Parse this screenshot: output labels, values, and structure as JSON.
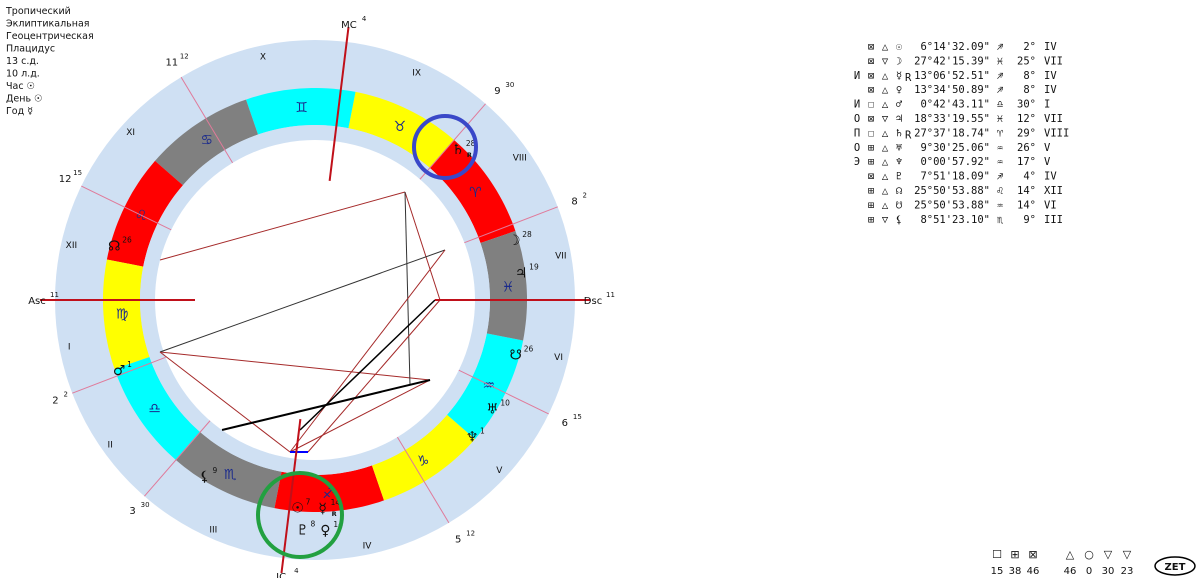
{
  "settings": [
    "Тропический",
    "Эклиптикальная",
    "Геоцентрическая",
    "Плацидус",
    "13 с.д.",
    "10 л.д.",
    "Час ☉",
    "День ☉",
    "Год ☿"
  ],
  "wheel": {
    "signs": [
      {
        "glyph": "♈",
        "color": "#ff0000"
      },
      {
        "glyph": "♉",
        "color": "#ffff00"
      },
      {
        "glyph": "♊",
        "color": "#00ffff"
      },
      {
        "glyph": "♋",
        "color": "#808080"
      },
      {
        "glyph": "♌",
        "color": "#ff0000"
      },
      {
        "glyph": "♍",
        "color": "#ffff00"
      },
      {
        "glyph": "♎",
        "color": "#00ffff"
      },
      {
        "glyph": "♏",
        "color": "#808080"
      },
      {
        "glyph": "♐",
        "color": "#ff0000"
      },
      {
        "glyph": "♑",
        "color": "#ffff00"
      },
      {
        "glyph": "♒",
        "color": "#00ffff"
      },
      {
        "glyph": "♓",
        "color": "#808080"
      }
    ],
    "cusps": [
      {
        "label": "Asc",
        "degree": 11,
        "longitude": 161
      },
      {
        "label": "2",
        "degree": 2,
        "longitude": 182
      },
      {
        "label": "3",
        "degree": 30,
        "longitude": 210
      },
      {
        "label": "IC",
        "degree": 4,
        "longitude": 244
      },
      {
        "label": "5",
        "degree": 12,
        "longitude": 282
      },
      {
        "label": "6",
        "degree": 15,
        "longitude": 315
      },
      {
        "label": "Dsc",
        "degree": 11,
        "longitude": 341
      },
      {
        "label": "8",
        "degree": 2,
        "longitude": 2
      },
      {
        "label": "9",
        "degree": 30,
        "longitude": 30
      },
      {
        "label": "MC",
        "degree": 4,
        "longitude": 64
      },
      {
        "label": "11",
        "degree": 12,
        "longitude": 102
      },
      {
        "label": "12",
        "degree": 15,
        "longitude": 135
      }
    ],
    "houses": [
      "I",
      "II",
      "III",
      "IV",
      "V",
      "VI",
      "VII",
      "VIII",
      "IX",
      "X",
      "XI",
      "XII"
    ],
    "planets": [
      {
        "glyph": "☉",
        "degree": 7,
        "longitude": 246.2
      },
      {
        "glyph": "☽",
        "degree": 28,
        "longitude": 357.7
      },
      {
        "glyph": "☿",
        "degree": 14,
        "retrograde": "R",
        "longitude": 253.1
      },
      {
        "glyph": "♀",
        "degree": 14,
        "longitude": 253.6
      },
      {
        "glyph": "♂",
        "degree": 1,
        "longitude": 180.7
      },
      {
        "glyph": "♃",
        "degree": 19,
        "longitude": 348.6
      },
      {
        "glyph": "♄",
        "degree": 28,
        "retrograde": "R",
        "longitude": 27.6
      },
      {
        "glyph": "♅",
        "degree": 10,
        "longitude": 309.5
      },
      {
        "glyph": "♆",
        "degree": 1,
        "longitude": 300.0
      },
      {
        "glyph": "♇",
        "degree": 8,
        "longitude": 247.9
      },
      {
        "glyph": "☊",
        "degree": 26,
        "longitude": 145.8
      },
      {
        "glyph": "☋",
        "degree": 26,
        "longitude": 325.8
      },
      {
        "glyph": "⚸",
        "degree": 9,
        "longitude": 218.9
      }
    ]
  },
  "table": {
    "rows": [
      {
        "element": "⊠",
        "quality": "△",
        "planet": "☉",
        "position": "6°14'32.09\"",
        "sign": "♐",
        "house_degree": "2°",
        "house": "IV"
      },
      {
        "element": "⊠",
        "quality": "▽",
        "planet": "☽",
        "position": "27°42'15.39\"",
        "sign": "♓",
        "house_degree": "25°",
        "house": "VII"
      },
      {
        "marker": "И",
        "element": "⊠",
        "quality": "△",
        "planet": "☿",
        "retro": "R",
        "position": "13°06'52.51\"",
        "sign": "♐",
        "house_degree": "8°",
        "house": "IV"
      },
      {
        "element": "⊠",
        "quality": "△",
        "planet": "♀",
        "position": "13°34'50.89\"",
        "sign": "♐",
        "house_degree": "8°",
        "house": "IV"
      },
      {
        "marker": "И",
        "element": "☐",
        "quality": "△",
        "planet": "♂",
        "position": "0°42'43.11\"",
        "sign": "♎",
        "house_degree": "30°",
        "house": "I"
      },
      {
        "marker": "О",
        "element": "⊠",
        "quality": "▽",
        "planet": "♃",
        "position": "18°33'19.55\"",
        "sign": "♓",
        "house_degree": "12°",
        "house": "VII"
      },
      {
        "marker": "П",
        "element": "☐",
        "quality": "△",
        "planet": "♄",
        "retro": "R",
        "position": "27°37'18.74\"",
        "sign": "♈",
        "house_degree": "29°",
        "house": "VIII"
      },
      {
        "marker": "О",
        "element": "⊞",
        "quality": "△",
        "planet": "♅",
        "position": "9°30'25.06\"",
        "sign": "♒",
        "house_degree": "26°",
        "house": "V"
      },
      {
        "marker": "Э",
        "element": "⊞",
        "quality": "△",
        "planet": "♆",
        "position": "0°00'57.92\"",
        "sign": "♒",
        "house_degree": "17°",
        "house": "V"
      },
      {
        "element": "⊠",
        "quality": "△",
        "planet": "♇",
        "position": "7°51'18.09\"",
        "sign": "♐",
        "house_degree": "4°",
        "house": "IV"
      },
      {
        "element": "⊞",
        "quality": "△",
        "planet": "☊",
        "position": "25°50'53.88\"",
        "sign": "♌",
        "house_degree": "14°",
        "house": "XII"
      },
      {
        "element": "⊞",
        "quality": "△",
        "planet": "☋",
        "position": "25°50'53.88\"",
        "sign": "♒",
        "house_degree": "14°",
        "house": "VI"
      },
      {
        "element": "⊞",
        "quality": "▽",
        "planet": "⚸",
        "position": "8°51'23.10\"",
        "sign": "♏",
        "house_degree": "9°",
        "house": "III"
      }
    ]
  },
  "footer": {
    "elements": [
      {
        "symbol": "☐",
        "count": 15
      },
      {
        "symbol": "⊞",
        "count": 38
      },
      {
        "symbol": "⊠",
        "count": 46
      }
    ],
    "qualities": [
      {
        "symbol": "△",
        "count": 46
      },
      {
        "symbol": "○",
        "count": 0
      },
      {
        "symbol": "▽",
        "count": 30
      },
      {
        "symbol": "▽",
        "count": 23
      }
    ],
    "logo": "ZET"
  }
}
